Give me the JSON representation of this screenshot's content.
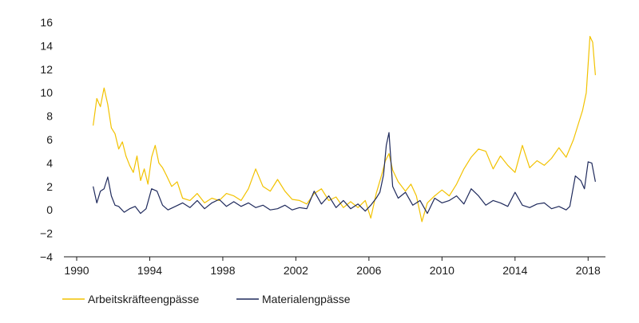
{
  "chart_data": {
    "type": "line",
    "title": "",
    "xlabel": "",
    "ylabel": "",
    "xlim": [
      1990,
      2018.6
    ],
    "ylim": [
      -4,
      16
    ],
    "x_ticks": [
      "1990",
      "1994",
      "1998",
      "2002",
      "2006",
      "2010",
      "2014",
      "2018"
    ],
    "y_ticks": [
      "16",
      "14",
      "12",
      "10",
      "8",
      "6",
      "4",
      "2",
      "0",
      "−2",
      "−4"
    ],
    "grid": false,
    "legend_position": "bottom-left",
    "series": [
      {
        "name": "Arbeitskräfteengpässe",
        "color": "#f2c200",
        "x": [
          1990.9,
          1991.1,
          1991.3,
          1991.5,
          1991.7,
          1991.9,
          1992.1,
          1992.3,
          1992.5,
          1992.7,
          1992.9,
          1993.1,
          1993.3,
          1993.5,
          1993.7,
          1993.9,
          1994.1,
          1994.3,
          1994.5,
          1994.7,
          1994.9,
          1995.2,
          1995.5,
          1995.8,
          1996.2,
          1996.6,
          1997.0,
          1997.4,
          1997.8,
          1998.2,
          1998.6,
          1999.0,
          1999.4,
          1999.8,
          2000.2,
          2000.6,
          2001.0,
          2001.4,
          2001.8,
          2002.2,
          2002.6,
          2003.0,
          2003.4,
          2003.8,
          2004.2,
          2004.6,
          2005.0,
          2005.4,
          2005.8,
          2006.1,
          2006.4,
          2006.7,
          2006.9,
          2007.1,
          2007.3,
          2007.6,
          2008.0,
          2008.3,
          2008.6,
          2008.9,
          2009.2,
          2009.6,
          2010.0,
          2010.4,
          2010.8,
          2011.2,
          2011.6,
          2012.0,
          2012.4,
          2012.8,
          2013.2,
          2013.6,
          2014.0,
          2014.4,
          2014.8,
          2015.2,
          2015.6,
          2016.0,
          2016.4,
          2016.8,
          2017.2,
          2017.5,
          2017.7,
          2017.9,
          2018.1,
          2018.25,
          2018.4
        ],
        "values": [
          7.2,
          9.5,
          8.8,
          10.4,
          9.0,
          7.0,
          6.5,
          5.2,
          5.8,
          4.6,
          3.8,
          3.2,
          4.6,
          2.5,
          3.5,
          2.2,
          4.5,
          5.5,
          4.0,
          3.6,
          3.0,
          2.0,
          2.4,
          1.0,
          0.8,
          1.4,
          0.6,
          1.0,
          0.8,
          1.4,
          1.2,
          0.8,
          1.8,
          3.5,
          2.0,
          1.6,
          2.6,
          1.6,
          0.9,
          0.8,
          0.5,
          1.4,
          1.8,
          0.8,
          1.1,
          0.2,
          0.7,
          0.2,
          0.8,
          -0.7,
          1.4,
          3.0,
          4.2,
          4.8,
          3.4,
          2.4,
          1.6,
          2.2,
          1.2,
          -1.0,
          0.6,
          1.2,
          1.7,
          1.2,
          2.2,
          3.5,
          4.5,
          5.2,
          5.0,
          3.5,
          4.6,
          3.8,
          3.2,
          5.5,
          3.6,
          4.2,
          3.8,
          4.4,
          5.3,
          4.5,
          6.0,
          7.5,
          8.5,
          10.0,
          14.8,
          14.3,
          11.5
        ]
      },
      {
        "name": "Materialengpässe",
        "color": "#1f2a5c",
        "x": [
          1990.9,
          1991.1,
          1991.3,
          1991.5,
          1991.7,
          1991.9,
          1992.1,
          1992.3,
          1992.6,
          1992.9,
          1993.2,
          1993.5,
          1993.8,
          1994.1,
          1994.4,
          1994.7,
          1995.0,
          1995.4,
          1995.8,
          1996.2,
          1996.6,
          1997.0,
          1997.4,
          1997.8,
          1998.2,
          1998.6,
          1999.0,
          1999.4,
          1999.8,
          2000.2,
          2000.6,
          2001.0,
          2001.4,
          2001.8,
          2002.2,
          2002.6,
          2003.0,
          2003.4,
          2003.8,
          2004.2,
          2004.6,
          2005.0,
          2005.4,
          2005.8,
          2006.1,
          2006.4,
          2006.6,
          2006.8,
          2006.95,
          2007.1,
          2007.3,
          2007.6,
          2008.0,
          2008.4,
          2008.8,
          2009.2,
          2009.6,
          2010.0,
          2010.4,
          2010.8,
          2011.2,
          2011.6,
          2012.0,
          2012.4,
          2012.8,
          2013.2,
          2013.6,
          2014.0,
          2014.4,
          2014.8,
          2015.2,
          2015.6,
          2016.0,
          2016.4,
          2016.8,
          2017.0,
          2017.3,
          2017.6,
          2017.8,
          2018.0,
          2018.2,
          2018.4
        ],
        "values": [
          2.0,
          0.6,
          1.6,
          1.8,
          2.8,
          1.2,
          0.4,
          0.3,
          -0.2,
          0.1,
          0.3,
          -0.3,
          0.1,
          1.8,
          1.6,
          0.4,
          0.0,
          0.3,
          0.6,
          0.2,
          0.8,
          0.1,
          0.6,
          0.9,
          0.3,
          0.7,
          0.3,
          0.6,
          0.2,
          0.4,
          0.0,
          0.1,
          0.4,
          0.0,
          0.2,
          0.1,
          1.6,
          0.5,
          1.2,
          0.2,
          0.8,
          0.1,
          0.5,
          -0.1,
          0.4,
          1.0,
          1.5,
          3.0,
          5.5,
          6.6,
          2.0,
          1.0,
          1.5,
          0.4,
          0.8,
          -0.3,
          1.0,
          0.6,
          0.8,
          1.2,
          0.5,
          1.8,
          1.2,
          0.4,
          0.8,
          0.6,
          0.3,
          1.5,
          0.4,
          0.2,
          0.5,
          0.6,
          0.1,
          0.3,
          0.0,
          0.3,
          2.9,
          2.5,
          1.8,
          4.1,
          4.0,
          2.4
        ]
      }
    ]
  }
}
